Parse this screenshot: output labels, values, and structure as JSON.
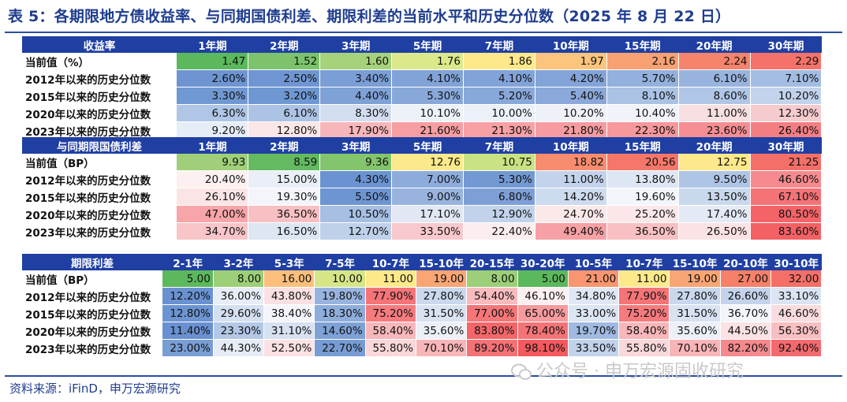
{
  "title": "表 5：各期限地方债收益率、与同期国债利差、期限利差的当前水平和历史分位数（2025 年 8 月 22 日）",
  "source": "资料来源：iFinD，申万宏源研究",
  "watermark": "公众号 · 申万宏源固收研究",
  "yield_table": {
    "header": "收益率",
    "columns": [
      "1年期",
      "2年期",
      "3年期",
      "5年期",
      "7年期",
      "10年期",
      "15年期",
      "20年期",
      "30年期"
    ],
    "rows": [
      {
        "label": "当前值（%）",
        "values": [
          "1.47",
          "1.52",
          "1.60",
          "1.76",
          "1.86",
          "1.97",
          "2.16",
          "2.24",
          "2.29"
        ],
        "colors": [
          "#5cb85c",
          "#7cc36b",
          "#a5d27a",
          "#dbe98a",
          "#fde98a",
          "#fcc57d",
          "#f8a173",
          "#f6836b",
          "#f47269"
        ]
      },
      {
        "label": "2012年以来的历史分位数",
        "values": [
          "2.60%",
          "2.50%",
          "3.40%",
          "4.10%",
          "4.10%",
          "4.20%",
          "5.70%",
          "6.10%",
          "7.10%"
        ],
        "colors": [
          "#6e95d2",
          "#6f96d2",
          "#7a9ed5",
          "#82a3d8",
          "#82a3d8",
          "#83a4d8",
          "#94b1dd",
          "#98b4de",
          "#a3bce2"
        ]
      },
      {
        "label": "2015年以来的历史分位数",
        "values": [
          "3.30%",
          "3.20%",
          "4.40%",
          "5.30%",
          "5.20%",
          "5.40%",
          "8.10%",
          "8.60%",
          "10.20%"
        ],
        "colors": [
          "#7099d3",
          "#6f98d3",
          "#7ea1d6",
          "#89a8da",
          "#88a8da",
          "#8aa9da",
          "#aac2e4",
          "#b0c6e6",
          "#c2d3eb"
        ]
      },
      {
        "label": "2020年以来的历史分位数",
        "values": [
          "6.30%",
          "6.10%",
          "8.30%",
          "10.10%",
          "10.00%",
          "10.20%",
          "10.40%",
          "11.00%",
          "12.30%"
        ],
        "colors": [
          "#b0c6e6",
          "#adc3e5",
          "#d2def0",
          "#edf1f8",
          "#ecf0f8",
          "#eef1f8",
          "#f0f3f9",
          "#f8dfe1",
          "#f6cbce"
        ]
      },
      {
        "label": "2023年以来的历史分位数",
        "values": [
          "9.20%",
          "12.80%",
          "17.90%",
          "21.60%",
          "21.30%",
          "21.80%",
          "22.30%",
          "23.60%",
          "26.40%"
        ],
        "colors": [
          "#e6edf6",
          "#fbe6e8",
          "#f7b6b9",
          "#f79ea2",
          "#f7a1a5",
          "#f69ca0",
          "#f6989c",
          "#f58f93",
          "#f47f83"
        ]
      }
    ]
  },
  "spread_table": {
    "header": "与同期限国债利差",
    "columns": [
      "1年期",
      "2年期",
      "3年期",
      "5年期",
      "7年期",
      "10年期",
      "15年期",
      "20年期",
      "30年期"
    ],
    "rows": [
      {
        "label": "当前值（BP）",
        "values": [
          "9.93",
          "8.59",
          "9.36",
          "12.76",
          "10.75",
          "18.82",
          "20.56",
          "12.75",
          "21.25"
        ],
        "colors": [
          "#9fcf78",
          "#63ba60",
          "#82c56c",
          "#fce98b",
          "#c9e283",
          "#f88c6e",
          "#f57769",
          "#fde98b",
          "#f46f68"
        ]
      },
      {
        "label": "2012年以来的历史分位数",
        "values": [
          "20.40%",
          "15.00%",
          "4.30%",
          "7.00%",
          "5.30%",
          "11.00%",
          "13.80%",
          "9.50%",
          "46.60%"
        ],
        "colors": [
          "#fcf0f1",
          "#e9eef7",
          "#6b93d1",
          "#8eacdb",
          "#7399d3",
          "#c3d3eb",
          "#dde6f3",
          "#afc5e6",
          "#f68a8e"
        ]
      },
      {
        "label": "2015年以来的历史分位数",
        "values": [
          "26.10%",
          "19.30%",
          "5.50%",
          "9.00%",
          "6.80%",
          "14.20%",
          "19.60%",
          "13.50%",
          "67.10%"
        ],
        "colors": [
          "#fbe4e6",
          "#f3f5fa",
          "#6d95d2",
          "#98b4de",
          "#7e9fd6",
          "#cddbee",
          "#f3f5fa",
          "#c9d8ed",
          "#f47377"
        ]
      },
      {
        "label": "2020年以来的历史分位数",
        "values": [
          "47.00%",
          "36.50%",
          "10.50%",
          "17.10%",
          "12.90%",
          "24.70%",
          "25.20%",
          "17.40%",
          "80.50%"
        ],
        "colors": [
          "#f7a5a9",
          "#f8c0c3",
          "#a7bfe3",
          "#e1e8f4",
          "#c2d2eb",
          "#fbe9ea",
          "#fbe7e9",
          "#e4eaf5",
          "#f36468"
        ]
      },
      {
        "label": "2023年以来的历史分位数",
        "values": [
          "34.70%",
          "16.50%",
          "12.70%",
          "33.50%",
          "22.40%",
          "49.40%",
          "36.50%",
          "26.50%",
          "83.60%"
        ],
        "colors": [
          "#f8c5c8",
          "#dde6f3",
          "#bfd0ea",
          "#f8c9cc",
          "#fcedef",
          "#f6a1a5",
          "#f8c0c3",
          "#fbe2e4",
          "#f36165"
        ]
      }
    ]
  },
  "term_table": {
    "header": "期限利差",
    "columns": [
      "2-1年",
      "3-2年",
      "5-3年",
      "7-5年",
      "10-7年",
      "15-10年",
      "20-15年",
      "30-20年",
      "10-5年",
      "10-7年",
      "15-10年",
      "20-10年",
      "30-10年"
    ],
    "rows": [
      {
        "label": "当前值（BP）",
        "values": [
          "5.00",
          "8.00",
          "16.00",
          "10.00",
          "11.00",
          "19.00",
          "8.00",
          "5.00",
          "21.00",
          "11.00",
          "19.00",
          "27.00",
          "32.00"
        ],
        "colors": [
          "#5cb85c",
          "#9ccf77",
          "#fcbf7c",
          "#d6e686",
          "#fde98a",
          "#f9a574",
          "#9ccf77",
          "#5cb85c",
          "#f9956f",
          "#fde98a",
          "#f9a574",
          "#f68068",
          "#f46f68"
        ]
      },
      {
        "label": "2012年以来的历史分位数",
        "values": [
          "12.20%",
          "36.00%",
          "43.80%",
          "19.80%",
          "77.90%",
          "27.80%",
          "54.40%",
          "46.10%",
          "34.80%",
          "77.90%",
          "27.80%",
          "26.60%",
          "33.10%"
        ],
        "colors": [
          "#6a92d1",
          "#e8eef7",
          "#fae0e2",
          "#98b4de",
          "#f47478",
          "#c9d8ed",
          "#f8bcbf",
          "#fceff0",
          "#e0e8f4",
          "#f47478",
          "#c9d8ed",
          "#c3d3eb",
          "#dae4f2"
        ]
      },
      {
        "label": "2015年以来的历史分位数",
        "values": [
          "12.80%",
          "29.60%",
          "38.40%",
          "18.30%",
          "75.20%",
          "31.50%",
          "77.00%",
          "65.00%",
          "33.00%",
          "75.20%",
          "31.50%",
          "36.70%",
          "46.60%"
        ],
        "colors": [
          "#6d94d2",
          "#d4e0f0",
          "#f3f5fa",
          "#8faddb",
          "#f57b7f",
          "#d8e2f1",
          "#f47679",
          "#f69a9e",
          "#dce5f2",
          "#f57b7f",
          "#d8e2f1",
          "#f2f5fa",
          "#fbdcde"
        ]
      },
      {
        "label": "2020年以来的历史分位数",
        "values": [
          "11.40%",
          "23.30%",
          "31.10%",
          "14.60%",
          "58.40%",
          "35.60%",
          "83.80%",
          "78.40%",
          "19.70%",
          "58.40%",
          "35.60%",
          "44.50%",
          "56.30%"
        ],
        "colors": [
          "#6990d0",
          "#b3c8e6",
          "#d6e1f1",
          "#7ea1d6",
          "#f8b7ba",
          "#ecf0f8",
          "#f36669",
          "#f47376",
          "#a0bae1",
          "#f8b7ba",
          "#ecf0f8",
          "#fbe2e4",
          "#f8bfc2"
        ]
      },
      {
        "label": "2023年以来的历史分位数",
        "values": [
          "23.00%",
          "44.30%",
          "52.50%",
          "22.70%",
          "55.80%",
          "70.10%",
          "89.20%",
          "98.10%",
          "33.50%",
          "55.80%",
          "70.10%",
          "82.20%",
          "92.40%"
        ],
        "colors": [
          "#799dd5",
          "#e6ecf6",
          "#fbe1e3",
          "#779cd4",
          "#fad7d9",
          "#f8b5b8",
          "#f47276",
          "#f3595d",
          "#c1d2ea",
          "#fad7d9",
          "#f8b5b8",
          "#f5898d",
          "#f36a6e"
        ]
      }
    ]
  }
}
